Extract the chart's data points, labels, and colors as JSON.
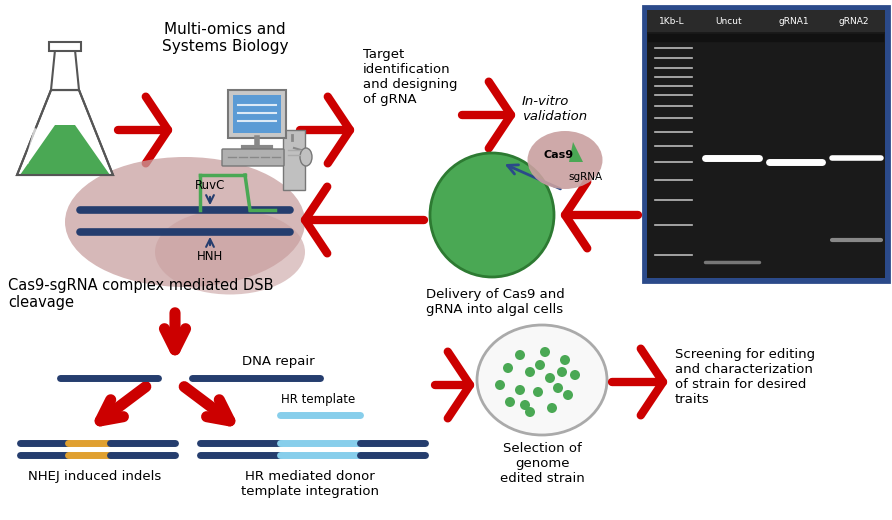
{
  "bg_color": "#ffffff",
  "figsize": [
    8.92,
    5.2
  ],
  "dpi": 100,
  "labels": {
    "multi_omics": "Multi-omics and\nSystems Biology",
    "target_id": "Target\nidentification\nand designing\nof gRNA",
    "invitro": "In-vitro\nvalidation",
    "cas9_delivery": "Delivery of Cas9 and\ngRNA into algal cells",
    "dsb": "Cas9-sgRNA complex mediated DSB\ncleavage",
    "dna_repair": "DNA repair",
    "nhej": "NHEJ induced indels",
    "hr": "HR mediated donor\ntemplate integration",
    "hr_template": "HR template",
    "selection": "Selection of\ngenome\nedited strain",
    "screening": "Screening for editing\nand characterization\nof strain for desired\ntraits",
    "ruvc": "RuvC",
    "hnh": "HNH",
    "cas9_label": "Cas9",
    "sgrna_label": "sgRNA"
  },
  "colors": {
    "red_arrow": "#cc0000",
    "dark_blue": "#253d6e",
    "gel_bg": "#1a1a1a",
    "gel_border": "#2b4a8a",
    "flask_green": "#4aa854",
    "computer_screen": "#5b9bd5",
    "cas9_cloud": "#c9a0a0",
    "algal_cell": "#4aa854",
    "pink_cloud": "#c9a0a0",
    "nhej_color": "#e0a030",
    "hr_color": "#87ceeb",
    "ruvc_loop_color": "#4aa854",
    "white": "#ffffff",
    "light_gray": "#f0f0f0",
    "mid_gray": "#aaaaaa"
  }
}
